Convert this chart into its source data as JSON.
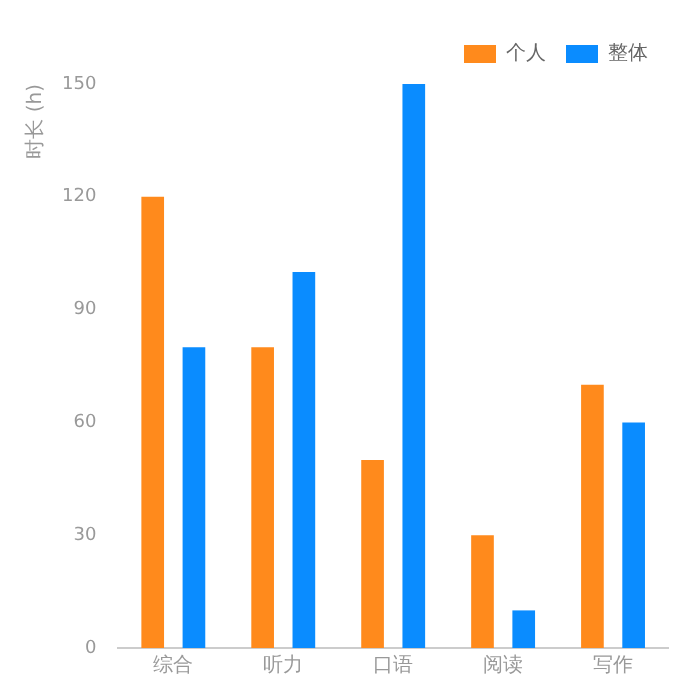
{
  "chart_data": {
    "type": "bar",
    "ylabel": "时长 (h)",
    "categories": [
      "综合",
      "听力",
      "口语",
      "阅读",
      "写作"
    ],
    "series": [
      {
        "name": "个人",
        "color": "#ff8a1c",
        "values": [
          120,
          80,
          50,
          30,
          70
        ]
      },
      {
        "name": "整体",
        "color": "#0a8cff",
        "values": [
          80,
          100,
          150,
          10,
          60
        ]
      }
    ],
    "ylim": [
      0,
      150
    ],
    "yticks": [
      0,
      30,
      60,
      90,
      120,
      150
    ],
    "grid": false,
    "legend": "top right"
  }
}
